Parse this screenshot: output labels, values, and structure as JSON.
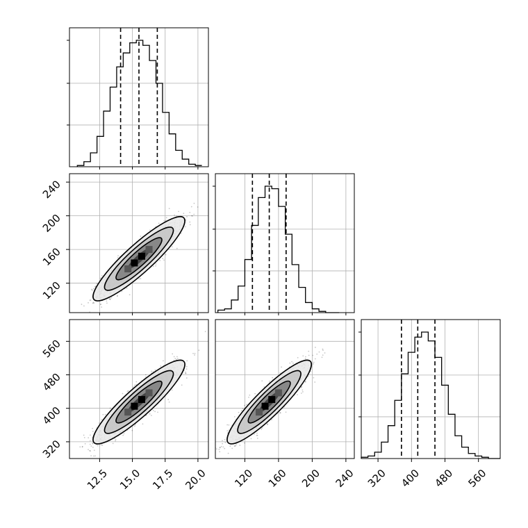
{
  "chart_data": {
    "type": "corner",
    "grid": true,
    "parameters": [
      {
        "id": "p1",
        "range": [
          10.2,
          20.8
        ],
        "ticks": [
          12.5,
          15.0,
          17.5,
          20.0
        ],
        "tick_labels": [
          "12.5",
          "15.0",
          "17.5",
          "20.0"
        ],
        "quantiles": [
          14.1,
          15.5,
          16.9
        ],
        "mean": 15.5,
        "sd": 1.4
      },
      {
        "id": "p2",
        "range": [
          85,
          250
        ],
        "ticks": [
          120,
          160,
          200,
          240
        ],
        "tick_labels": [
          "120",
          "160",
          "200",
          "240"
        ],
        "quantiles": [
          129,
          149,
          169
        ],
        "mean": 149,
        "sd": 20
      },
      {
        "id": "p3",
        "range": [
          280,
          612
        ],
        "ticks": [
          320,
          400,
          480,
          560
        ],
        "tick_labels": [
          "320",
          "400",
          "480",
          "560"
        ],
        "quantiles": [
          376,
          415,
          456
        ],
        "mean": 415,
        "sd": 40
      }
    ],
    "histograms": [
      {
        "param": "p1",
        "edges": [
          10.8,
          11.3,
          11.8,
          12.3,
          12.8,
          13.3,
          13.8,
          14.3,
          14.8,
          15.3,
          15.8,
          16.3,
          16.8,
          17.3,
          17.8,
          18.3,
          18.8,
          19.3,
          19.8,
          20.3
        ],
        "counts": [
          1,
          4,
          11,
          24,
          44,
          63,
          79,
          90,
          98,
          100,
          96,
          84,
          66,
          43,
          26,
          13,
          6,
          2,
          1
        ]
      },
      {
        "param": "p2",
        "edges": [
          88,
          96,
          104,
          112,
          120,
          128,
          136,
          144,
          152,
          160,
          168,
          176,
          184,
          192,
          200,
          208,
          216,
          224,
          232
        ],
        "counts": [
          2,
          3,
          10,
          21,
          42,
          69,
          91,
          100,
          98,
          84,
          62,
          38,
          20,
          8,
          3,
          1,
          0,
          0
        ]
      },
      {
        "param": "p3",
        "edges": [
          280,
          296,
          312,
          328,
          344,
          360,
          376,
          392,
          408,
          424,
          440,
          456,
          472,
          488,
          504,
          520,
          536,
          552,
          568,
          584,
          600,
          612
        ],
        "counts": [
          1,
          2,
          5,
          13,
          26,
          46,
          67,
          84,
          96,
          100,
          93,
          80,
          58,
          35,
          18,
          9,
          4,
          2,
          1,
          0,
          0
        ]
      }
    ],
    "pairs": [
      {
        "x": "p1",
        "y": "p2",
        "rho": 0.9
      },
      {
        "x": "p1",
        "y": "p3",
        "rho": 0.9
      },
      {
        "x": "p2",
        "y": "p3",
        "rho": 0.9
      }
    ],
    "contour_levels_sigma": [
      0.5,
      1.0,
      1.5,
      2.0
    ]
  }
}
